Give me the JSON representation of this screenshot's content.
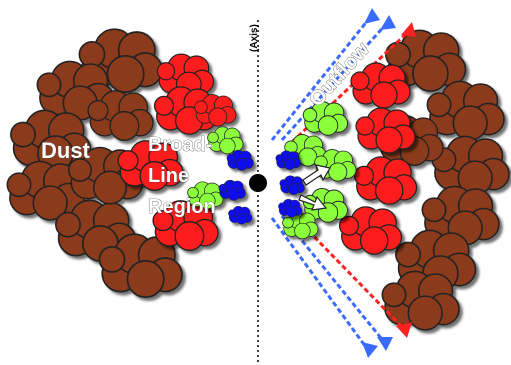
{
  "labels": {
    "axis": "(Axis)",
    "outflow": "Outflow",
    "dust": "Dust",
    "blr_line1": "Broad-",
    "blr_line2": "Line",
    "blr_line3": "Region"
  },
  "colors": {
    "dust": "#8b3a1a",
    "broad_line_red": "#ff1a1a",
    "green": "#8cff3c",
    "blue": "#1010ee",
    "arrow_blue": "#3a6bff",
    "arrow_red": "#ff2222",
    "core": "#000000"
  }
}
